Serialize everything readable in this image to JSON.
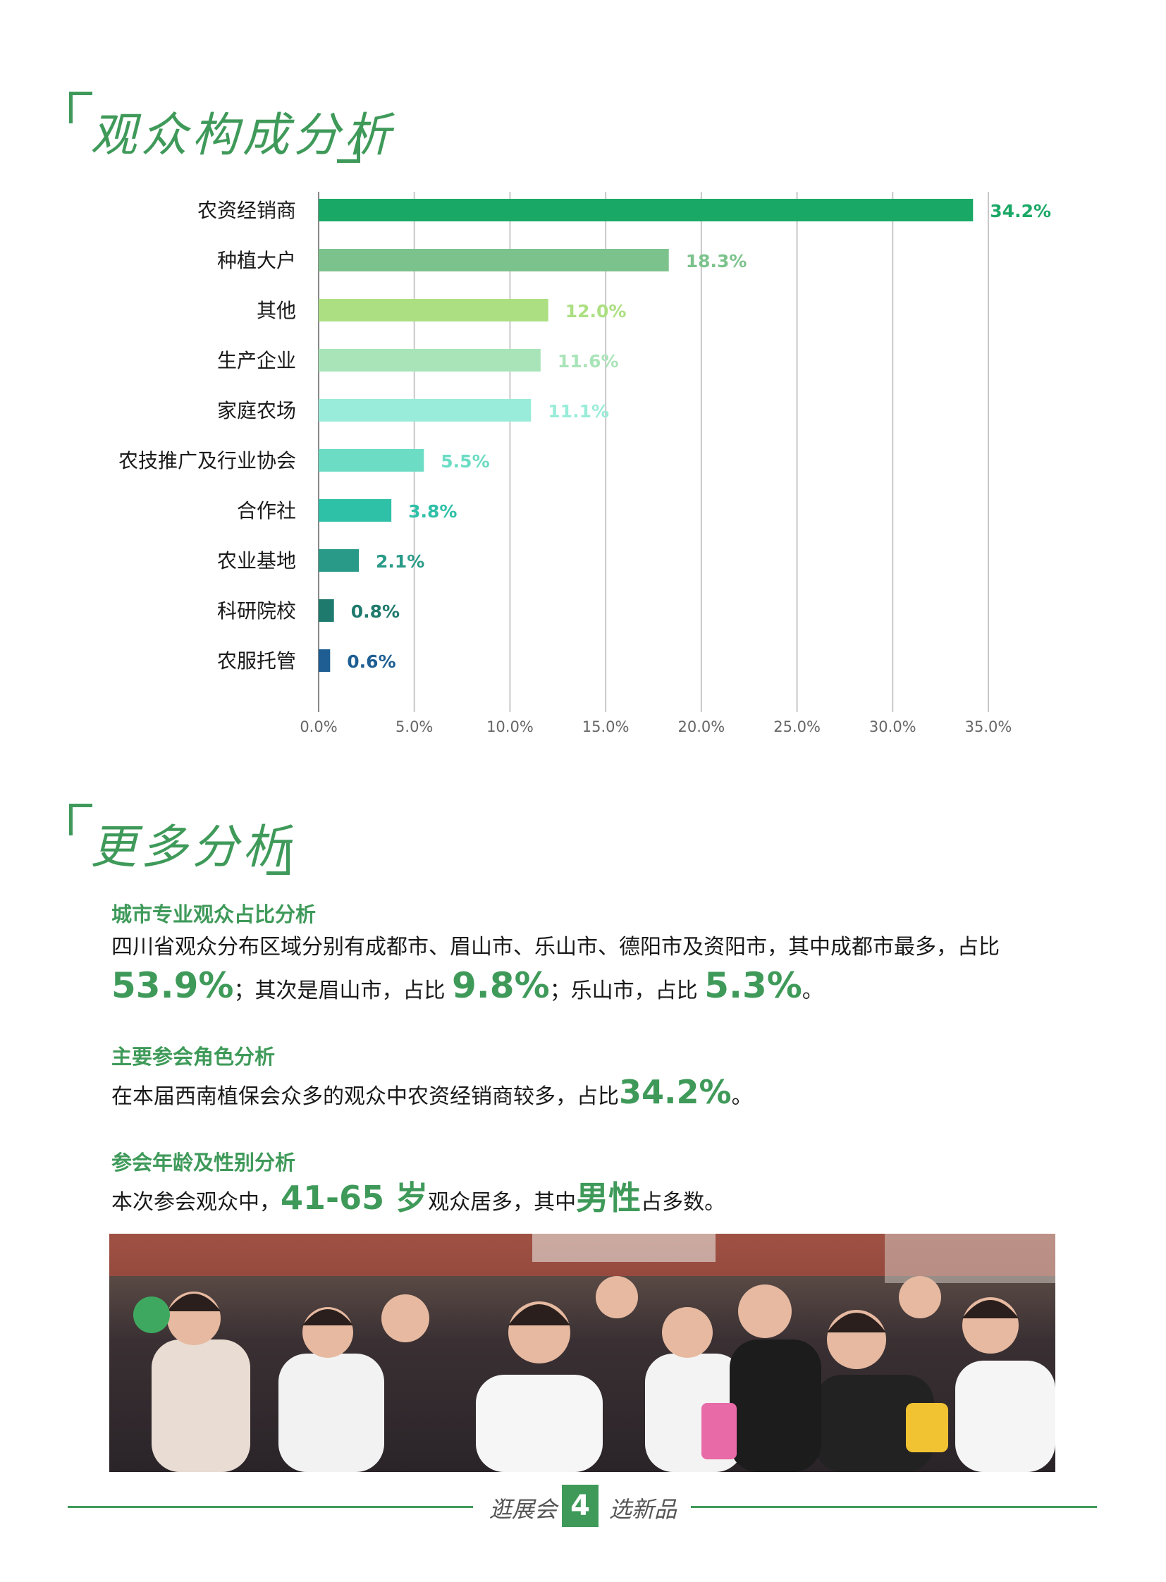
{
  "section1": {
    "title": "观众构成分析"
  },
  "chart_data": {
    "type": "bar",
    "orientation": "horizontal",
    "categories": [
      "农资经销商",
      "种植大户",
      "其他",
      "生产企业",
      "家庭农场",
      "农技推广及行业协会",
      "合作社",
      "农业基地",
      "科研院校",
      "农服托管"
    ],
    "values": [
      34.2,
      18.3,
      12.0,
      11.6,
      11.1,
      5.5,
      3.8,
      2.1,
      0.8,
      0.6
    ],
    "value_labels": [
      "34.2%",
      "18.3%",
      "12.0%",
      "11.6%",
      "11.1%",
      "5.5%",
      "3.8%",
      "2.1%",
      "0.8%",
      "0.6%"
    ],
    "colors": [
      "#1aa866",
      "#7cc28c",
      "#acdf82",
      "#a9e4b8",
      "#99ecd9",
      "#6cdcc4",
      "#2fc0a8",
      "#2a9a88",
      "#1f7a6e",
      "#1e5e92"
    ],
    "xlim": [
      0,
      35
    ],
    "xticks": [
      "0.0%",
      "5.0%",
      "10.0%",
      "15.0%",
      "20.0%",
      "25.0%",
      "30.0%",
      "35.0%"
    ],
    "grid": "vertical",
    "title": "",
    "xlabel": "",
    "ylabel": ""
  },
  "section2": {
    "title": "更多分析",
    "city": {
      "heading": "城市专业观众占比分析",
      "line1": "四川省观众分布区域分别有成都市、眉山市、乐山市、德阳市及资阳市，其中成都市最多，占比",
      "v1": "53.9%",
      "t2": "；其次是眉山市，占比",
      "v2": "9.8%",
      "t3": "；乐山市，占比",
      "v3": "5.3%",
      "t4": "。"
    },
    "role": {
      "heading": "主要参会角色分析",
      "text": "在本届西南植保会众多的观众中农资经销商较多，占比",
      "value": "34.2%",
      "end": "。"
    },
    "age": {
      "heading": "参会年龄及性别分析",
      "t1": "本次参会观众中，",
      "value": "41-65 岁",
      "t2": "观众居多，其中",
      "gender": "男性",
      "t3": "占多数。"
    }
  },
  "footer": {
    "left": "逛展会",
    "page": "4",
    "right": "选新品"
  }
}
